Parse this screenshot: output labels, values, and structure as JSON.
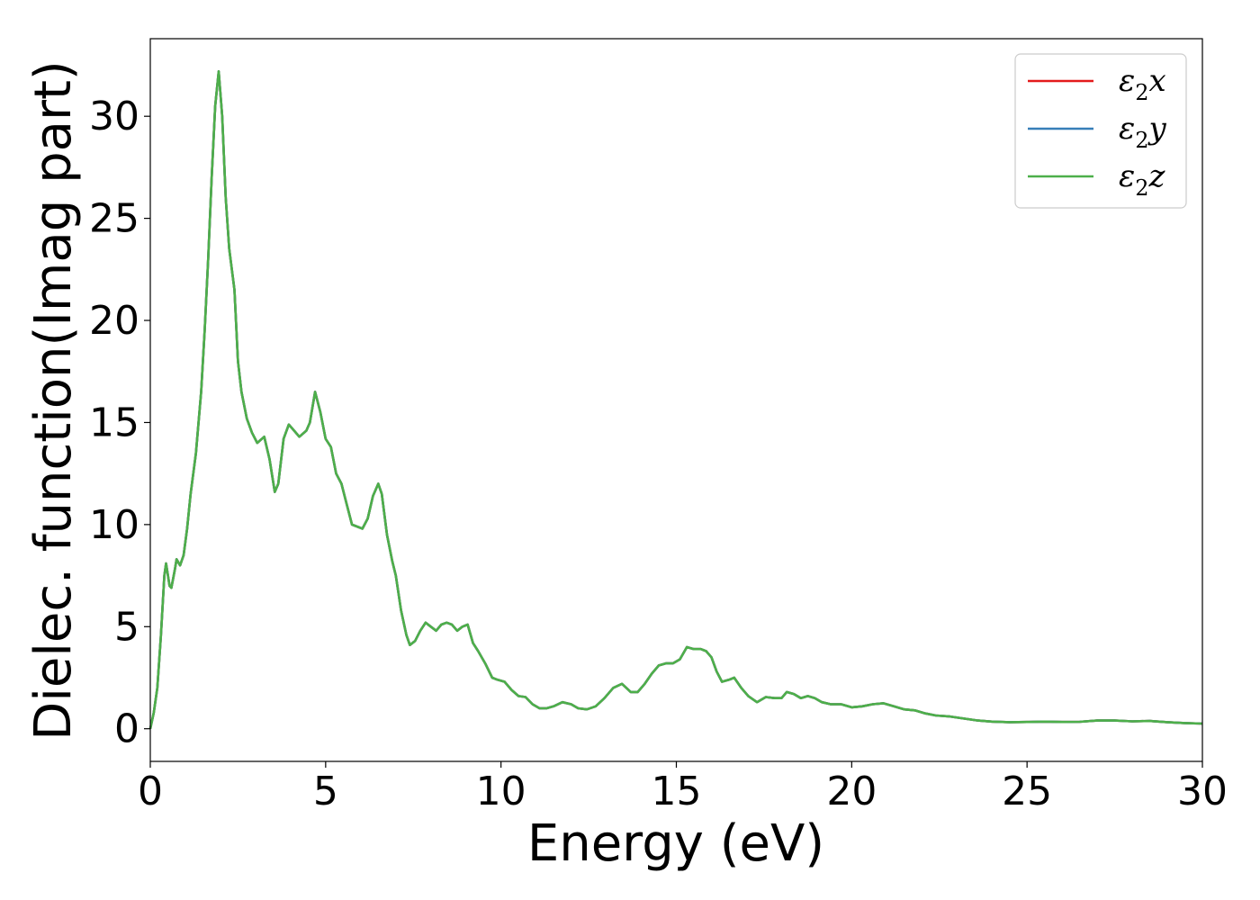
{
  "chart_data": {
    "type": "line",
    "title": "",
    "xlabel": "Energy (eV)",
    "ylabel": "Dielec. function(Imag part)",
    "xlim": [
      0,
      30
    ],
    "ylim": [
      -1.6,
      33.8
    ],
    "xticks": [
      0,
      5,
      10,
      15,
      20,
      25,
      30
    ],
    "yticks": [
      0,
      5,
      10,
      15,
      20,
      25,
      30
    ],
    "grid": false,
    "legend_position": "top-right",
    "series": [
      {
        "name": "ε2x",
        "legend_main": "ε",
        "legend_sub": "2",
        "legend_axis": "x",
        "color": "#e41a1c",
        "points": []
      },
      {
        "name": "ε2y",
        "legend_main": "ε",
        "legend_sub": "2",
        "legend_axis": "y",
        "color": "#377eb8",
        "points": []
      },
      {
        "name": "ε2z",
        "legend_main": "ε",
        "legend_sub": "2",
        "legend_axis": "z",
        "color": "#4daf4a",
        "points": []
      }
    ],
    "shared_points": [
      [
        0.0,
        0.0
      ],
      [
        0.1,
        0.8
      ],
      [
        0.2,
        2.0
      ],
      [
        0.3,
        4.5
      ],
      [
        0.4,
        7.5
      ],
      [
        0.45,
        8.1
      ],
      [
        0.55,
        7.0
      ],
      [
        0.6,
        6.9
      ],
      [
        0.7,
        7.8
      ],
      [
        0.75,
        8.3
      ],
      [
        0.85,
        8.0
      ],
      [
        0.95,
        8.5
      ],
      [
        1.05,
        9.8
      ],
      [
        1.15,
        11.5
      ],
      [
        1.3,
        13.5
      ],
      [
        1.45,
        16.5
      ],
      [
        1.55,
        19.5
      ],
      [
        1.65,
        23.0
      ],
      [
        1.75,
        27.0
      ],
      [
        1.85,
        30.5
      ],
      [
        1.95,
        32.2
      ],
      [
        2.05,
        30.0
      ],
      [
        2.15,
        26.0
      ],
      [
        2.25,
        23.5
      ],
      [
        2.4,
        21.5
      ],
      [
        2.5,
        18.0
      ],
      [
        2.6,
        16.5
      ],
      [
        2.75,
        15.2
      ],
      [
        2.9,
        14.5
      ],
      [
        3.05,
        14.0
      ],
      [
        3.25,
        14.3
      ],
      [
        3.4,
        13.2
      ],
      [
        3.55,
        11.6
      ],
      [
        3.65,
        12.0
      ],
      [
        3.8,
        14.2
      ],
      [
        3.95,
        14.9
      ],
      [
        4.1,
        14.6
      ],
      [
        4.25,
        14.3
      ],
      [
        4.45,
        14.6
      ],
      [
        4.55,
        15.0
      ],
      [
        4.7,
        16.5
      ],
      [
        4.85,
        15.5
      ],
      [
        5.0,
        14.2
      ],
      [
        5.15,
        13.8
      ],
      [
        5.3,
        12.5
      ],
      [
        5.45,
        12.0
      ],
      [
        5.6,
        11.0
      ],
      [
        5.75,
        10.0
      ],
      [
        5.9,
        9.9
      ],
      [
        6.05,
        9.8
      ],
      [
        6.2,
        10.3
      ],
      [
        6.35,
        11.4
      ],
      [
        6.5,
        12.0
      ],
      [
        6.6,
        11.5
      ],
      [
        6.75,
        9.5
      ],
      [
        6.9,
        8.2
      ],
      [
        7.0,
        7.5
      ],
      [
        7.15,
        5.8
      ],
      [
        7.3,
        4.6
      ],
      [
        7.4,
        4.1
      ],
      [
        7.55,
        4.3
      ],
      [
        7.7,
        4.8
      ],
      [
        7.85,
        5.2
      ],
      [
        8.0,
        5.0
      ],
      [
        8.15,
        4.8
      ],
      [
        8.3,
        5.1
      ],
      [
        8.45,
        5.2
      ],
      [
        8.6,
        5.1
      ],
      [
        8.75,
        4.8
      ],
      [
        8.9,
        5.0
      ],
      [
        9.05,
        5.1
      ],
      [
        9.2,
        4.2
      ],
      [
        9.35,
        3.8
      ],
      [
        9.55,
        3.2
      ],
      [
        9.75,
        2.5
      ],
      [
        9.9,
        2.4
      ],
      [
        10.1,
        2.3
      ],
      [
        10.3,
        1.9
      ],
      [
        10.5,
        1.6
      ],
      [
        10.7,
        1.55
      ],
      [
        10.9,
        1.2
      ],
      [
        11.1,
        1.0
      ],
      [
        11.3,
        1.0
      ],
      [
        11.5,
        1.1
      ],
      [
        11.75,
        1.3
      ],
      [
        12.0,
        1.2
      ],
      [
        12.2,
        1.0
      ],
      [
        12.45,
        0.95
      ],
      [
        12.7,
        1.1
      ],
      [
        12.95,
        1.5
      ],
      [
        13.2,
        2.0
      ],
      [
        13.45,
        2.2
      ],
      [
        13.7,
        1.8
      ],
      [
        13.9,
        1.8
      ],
      [
        14.1,
        2.2
      ],
      [
        14.3,
        2.7
      ],
      [
        14.5,
        3.1
      ],
      [
        14.7,
        3.2
      ],
      [
        14.9,
        3.2
      ],
      [
        15.1,
        3.4
      ],
      [
        15.3,
        4.0
      ],
      [
        15.5,
        3.9
      ],
      [
        15.7,
        3.9
      ],
      [
        15.85,
        3.8
      ],
      [
        16.0,
        3.5
      ],
      [
        16.15,
        2.8
      ],
      [
        16.3,
        2.3
      ],
      [
        16.5,
        2.4
      ],
      [
        16.65,
        2.5
      ],
      [
        16.85,
        2.0
      ],
      [
        17.05,
        1.6
      ],
      [
        17.3,
        1.3
      ],
      [
        17.55,
        1.55
      ],
      [
        17.8,
        1.5
      ],
      [
        18.0,
        1.5
      ],
      [
        18.15,
        1.8
      ],
      [
        18.35,
        1.7
      ],
      [
        18.55,
        1.5
      ],
      [
        18.75,
        1.6
      ],
      [
        18.95,
        1.5
      ],
      [
        19.15,
        1.3
      ],
      [
        19.4,
        1.2
      ],
      [
        19.7,
        1.2
      ],
      [
        20.0,
        1.05
      ],
      [
        20.3,
        1.1
      ],
      [
        20.6,
        1.2
      ],
      [
        20.9,
        1.25
      ],
      [
        21.2,
        1.1
      ],
      [
        21.5,
        0.95
      ],
      [
        21.8,
        0.9
      ],
      [
        22.1,
        0.75
      ],
      [
        22.4,
        0.65
      ],
      [
        22.8,
        0.6
      ],
      [
        23.2,
        0.5
      ],
      [
        23.6,
        0.4
      ],
      [
        24.0,
        0.35
      ],
      [
        24.5,
        0.32
      ],
      [
        25.0,
        0.33
      ],
      [
        25.5,
        0.35
      ],
      [
        26.0,
        0.33
      ],
      [
        26.5,
        0.34
      ],
      [
        27.0,
        0.4
      ],
      [
        27.5,
        0.4
      ],
      [
        28.0,
        0.36
      ],
      [
        28.5,
        0.38
      ],
      [
        29.0,
        0.32
      ],
      [
        29.5,
        0.28
      ],
      [
        30.0,
        0.25
      ]
    ]
  }
}
